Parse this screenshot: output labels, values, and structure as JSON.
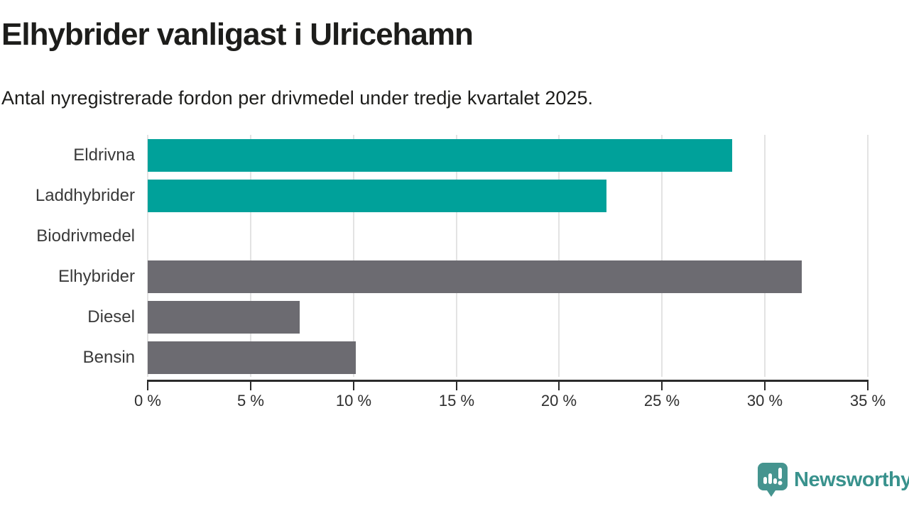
{
  "header": {
    "title": "Elhybrider vanligast i Ulricehamn",
    "subtitle": "Antal nyregistrerade fordon per drivmedel under tredje kvartalet 2025."
  },
  "chart_data": {
    "type": "bar",
    "orientation": "horizontal",
    "title": "Elhybrider vanligast i Ulricehamn",
    "categories": [
      "Eldrivna",
      "Laddhybrider",
      "Biodrivmedel",
      "Elhybrider",
      "Diesel",
      "Bensin"
    ],
    "values": [
      28.4,
      22.3,
      0,
      31.8,
      7.4,
      10.1
    ],
    "unit": "%",
    "bar_color_roles": [
      "highlight",
      "highlight",
      "highlight",
      "default",
      "default",
      "default"
    ],
    "colors": {
      "highlight": "#00a19a",
      "default": "#6c6b71",
      "gridline": "#e3e3e3",
      "axis": "#2b2b2b",
      "tick_text": "#2e2e2e",
      "category_text": "#3a3a3a"
    },
    "xlabel": "",
    "ylabel": "",
    "xlim": [
      0,
      35
    ],
    "xticks": [
      0,
      5,
      10,
      15,
      20,
      25,
      30,
      35
    ],
    "xtick_labels": [
      "0 %",
      "5 %",
      "10 %",
      "15 %",
      "20 %",
      "25 %",
      "30 %",
      "35 %"
    ],
    "grid": true,
    "legend_position": "none"
  },
  "footer": {
    "brand_name": "Newsworthy",
    "brand_color": "#39928d",
    "logo_icon": "newsworthy-speech-bubble-bar-chart-icon"
  }
}
